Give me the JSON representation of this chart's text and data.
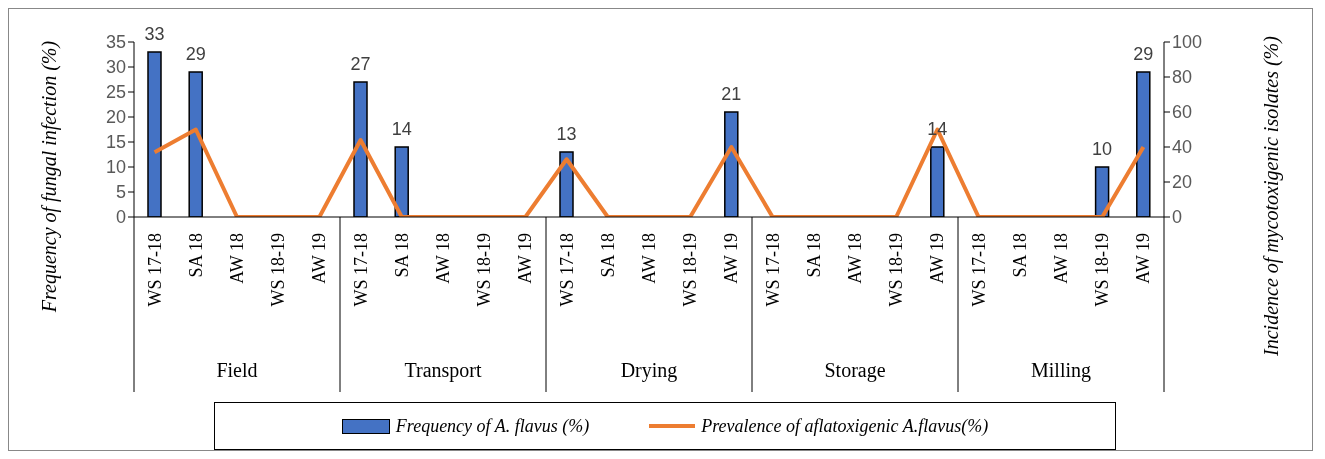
{
  "chart_data": {
    "type": "bar",
    "ylabel": "Frequency of fungal infection (%)",
    "y2label": "Incidence of mycotoxigenic isolates (%)",
    "categories": [
      "WS 17-18",
      "SA 18",
      "AW 18",
      "WS 18-19",
      "AW 19",
      "WS 17-18",
      "SA 18",
      "AW 18",
      "WS 18-19",
      "AW 19",
      "WS 17-18",
      "SA 18",
      "AW 18",
      "WS 18-19",
      "AW 19",
      "WS 17-18",
      "SA 18",
      "AW 18",
      "WS 18-19",
      "AW 19",
      "WS 17-18",
      "SA 18",
      "AW 18",
      "WS 18-19",
      "AW 19"
    ],
    "annotations": [
      "Field",
      "Transport",
      "Drying",
      "Storage",
      "Milling"
    ],
    "series": [
      {
        "name": "Frequency of A. flavus (%)",
        "color": "#4472c4",
        "values": [
          33,
          29,
          0,
          0,
          0,
          27,
          14,
          0,
          0,
          0,
          13,
          0,
          0,
          0,
          21,
          0,
          0,
          0,
          0,
          14,
          0,
          0,
          0,
          10,
          29
        ],
        "value_labels": [
          "33",
          "29",
          null,
          null,
          null,
          "27",
          "14",
          null,
          null,
          null,
          "13",
          null,
          null,
          null,
          "21",
          null,
          null,
          null,
          null,
          "14",
          null,
          null,
          null,
          "10",
          "29"
        ]
      },
      {
        "name": "Prevalence of aflatoxigenic A.flavus(%)",
        "type": "line",
        "axis": "y2",
        "color": "#ed7d31",
        "values": [
          37,
          50,
          0,
          0,
          0,
          44,
          0,
          0,
          0,
          0,
          33,
          0,
          0,
          0,
          40,
          0,
          0,
          0,
          0,
          50,
          0,
          0,
          0,
          0,
          40
        ]
      }
    ],
    "ylim": [
      0,
      35
    ],
    "yticks": [
      0,
      5,
      10,
      15,
      20,
      25,
      30,
      35
    ],
    "y2lim": [
      0,
      100
    ],
    "y2ticks": [
      0,
      20,
      40,
      60,
      80,
      100
    ],
    "legend": "bottom",
    "marker": "none",
    "line_style": "solid"
  }
}
